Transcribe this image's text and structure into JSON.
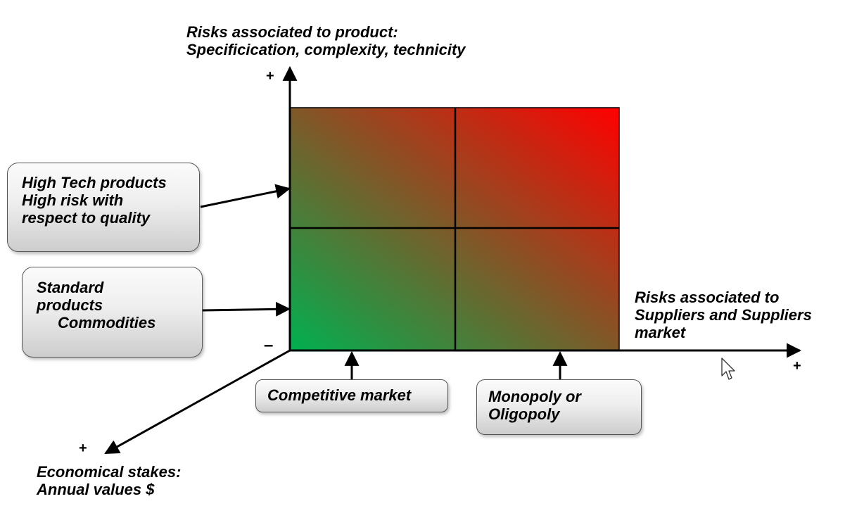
{
  "title_fragment": "",
  "y_axis": {
    "label_line1": "Risks associated to product:",
    "label_line2": "Specificication, complexity, technicity",
    "plus_sign": "+"
  },
  "x_axis": {
    "label_line1": "Risks associated to",
    "label_line2": "Suppliers and Suppliers",
    "label_line3": "market",
    "plus_sign": "+"
  },
  "z_axis": {
    "label_line1": "Economical stakes:",
    "label_line2": "Annual values $",
    "plus_sign": "+"
  },
  "origin_sign": "–",
  "callouts": {
    "high_tech": {
      "line1": "High Tech products",
      "line2": "High risk with",
      "line3": "respect to quality"
    },
    "standard": {
      "line1": "Standard",
      "line2": "products",
      "line3": "Commodities"
    },
    "competitive": {
      "line1": "Competitive market"
    },
    "monopoly": {
      "line1": "Monopoly or",
      "line2": "Oligopoly"
    }
  },
  "colors": {
    "low_risk": "#00b050",
    "high_risk": "#ff0000",
    "title_accent": "#e8501a"
  },
  "icons": {
    "cursor": "mouse-pointer-icon"
  }
}
